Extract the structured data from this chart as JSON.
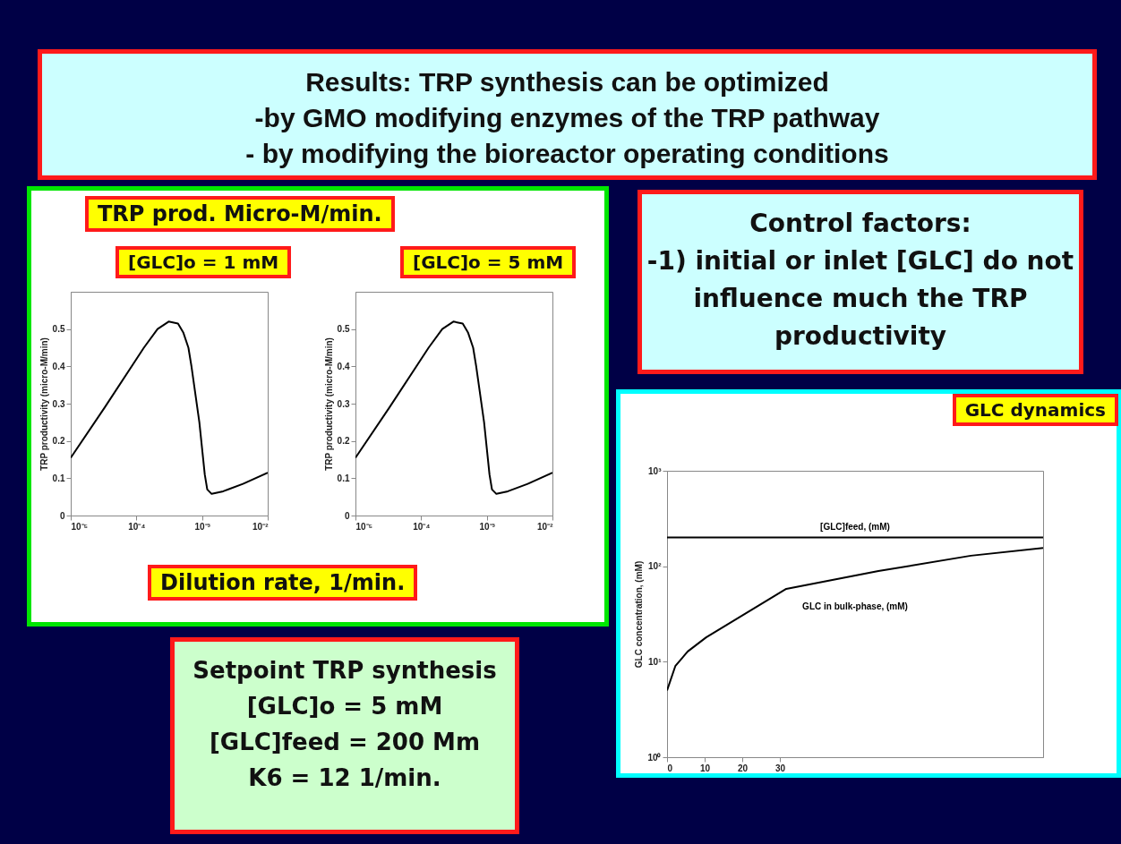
{
  "chart_data": [
    {
      "type": "other",
      "title": "Results: TRP synthesis can be optimized",
      "annotations": [
        "-by GMO modifying enzymes of the TRP pathway",
        "- by modifying the bioreactor operating conditions"
      ]
    },
    {
      "type": "line",
      "title": "TRP prod. Micro-M/min.",
      "xlabel": "Dilution rate,  1/min.",
      "ylabel": "TRP productivity (micro-M/min)",
      "annotations": [
        "[GLC]o = 1 mM"
      ],
      "log": "x",
      "grid": false,
      "xlim": [
        1e-05,
        0.01
      ],
      "xticks": [
        {
          "value": 1e-05,
          "label": "10⁻⁵"
        },
        {
          "value": 0.0001,
          "label": "10⁻⁴"
        },
        {
          "value": 0.001,
          "label": "10⁻³"
        },
        {
          "value": 0.01,
          "label": "10⁻²"
        }
      ],
      "ylim": [
        0,
        0.6
      ],
      "yticks": [
        0,
        0.1,
        0.2,
        0.3,
        0.4,
        0.5
      ],
      "x": [
        1e-05,
        3.3e-05,
        0.00013,
        0.00021,
        0.00031,
        0.00043,
        0.00052,
        0.00062,
        0.00069,
        0.00091,
        0.0011,
        0.0012,
        0.0014,
        0.0021,
        0.0042,
        0.01
      ],
      "series": [
        {
          "color": "#000000",
          "values": [
            0.155,
            0.29,
            0.45,
            0.5,
            0.52,
            0.515,
            0.49,
            0.45,
            0.4,
            0.25,
            0.11,
            0.07,
            0.058,
            0.065,
            0.085,
            0.115
          ]
        }
      ]
    },
    {
      "type": "line",
      "ylabel": "TRP productivity (micro-M/min)",
      "annotations": [
        "[GLC]o = 5 mM"
      ],
      "log": "x",
      "grid": false,
      "xlim": [
        1e-05,
        0.01
      ],
      "xticks": [
        {
          "value": 1e-05,
          "label": "10⁻⁵"
        },
        {
          "value": 0.0001,
          "label": "10⁻⁴"
        },
        {
          "value": 0.001,
          "label": "10⁻³"
        },
        {
          "value": 0.01,
          "label": "10⁻²"
        }
      ],
      "ylim": [
        0,
        0.6
      ],
      "yticks": [
        0,
        0.1,
        0.2,
        0.3,
        0.4,
        0.5
      ],
      "x": [
        1e-05,
        3.3e-05,
        0.00013,
        0.00021,
        0.00031,
        0.00043,
        0.00052,
        0.00062,
        0.00069,
        0.00091,
        0.0011,
        0.0012,
        0.0014,
        0.0021,
        0.0042,
        0.01
      ],
      "series": [
        {
          "color": "#000000",
          "values": [
            0.155,
            0.29,
            0.45,
            0.5,
            0.52,
            0.515,
            0.49,
            0.45,
            0.4,
            0.25,
            0.11,
            0.07,
            0.058,
            0.065,
            0.085,
            0.115
          ]
        }
      ]
    },
    {
      "type": "other",
      "title": "Control factors:",
      "annotations": [
        "-1) initial or inlet [GLC] do not influence much the TRP productivity"
      ]
    },
    {
      "type": "line",
      "title": "GLC dynamics",
      "ylabel": "GLC concentration, (mM)",
      "log": "y",
      "grid": false,
      "xlim": [
        0,
        100
      ],
      "xticks": [
        0,
        10,
        20,
        30
      ],
      "ylim": [
        1,
        1000
      ],
      "yticks": [
        {
          "value": 1,
          "label": "10⁰"
        },
        {
          "value": 10,
          "label": "10¹"
        },
        {
          "value": 100,
          "label": "10²"
        },
        {
          "value": 1000,
          "label": "10³"
        }
      ],
      "series": [
        {
          "name": "[GLC]feed, (mM)",
          "color": "#000000",
          "x": [
            0,
            100
          ],
          "values": [
            200,
            200
          ]
        },
        {
          "name": "GLC in bulk-phase, (mM)",
          "color": "#000000",
          "x": [
            0,
            2.2,
            5.5,
            10.4,
            31.7,
            56.2,
            80.8,
            100
          ],
          "values": [
            5,
            9,
            12.8,
            18,
            58,
            89,
            129,
            155
          ]
        }
      ]
    },
    {
      "type": "other",
      "title": "Setpoint TRP synthesis",
      "annotations": [
        "[GLC]o = 5 mM",
        "[GLC]feed = 200 Mm",
        "K6 = 12 1/min."
      ]
    }
  ]
}
